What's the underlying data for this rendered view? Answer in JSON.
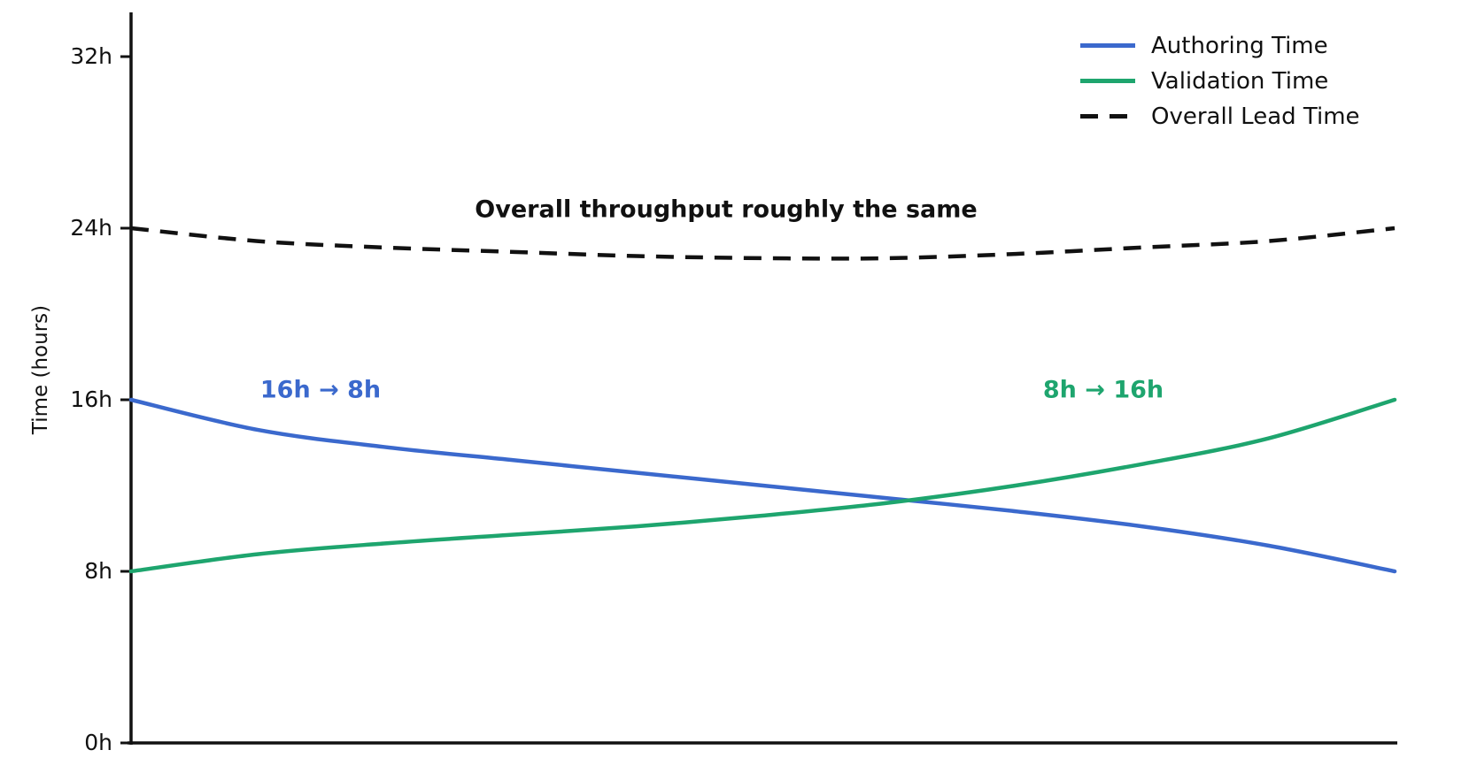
{
  "figure": {
    "background": "#ffffff",
    "axis_color": "#111111"
  },
  "y_axis": {
    "label": "Time (hours)",
    "ticks": [
      {
        "label": "0h",
        "value": 0
      },
      {
        "label": "8h",
        "value": 8
      },
      {
        "label": "16h",
        "value": 16
      },
      {
        "label": "24h",
        "value": 24
      },
      {
        "label": "32h",
        "value": 32
      }
    ]
  },
  "legend": {
    "items": [
      {
        "label": "Authoring Time",
        "color": "#3b69cd",
        "style": "solid"
      },
      {
        "label": "Validation Time",
        "color": "#1ea56e",
        "style": "solid"
      },
      {
        "label": "Overall Lead Time",
        "color": "#111111",
        "style": "dashed"
      }
    ]
  },
  "annotations": {
    "throughput": {
      "text": "Overall throughput roughly the same",
      "color": "#111111"
    },
    "authoring_change": {
      "text": "16h → 8h",
      "color": "#3b69cd"
    },
    "validation_change": {
      "text": "8h → 16h",
      "color": "#1ea56e"
    }
  },
  "chart_data": {
    "type": "line",
    "title": "",
    "xlabel": "",
    "ylabel": "Time (hours)",
    "x_axis_visible_labels": "none",
    "ylim": [
      0,
      34
    ],
    "y_tick_values": [
      0,
      8,
      16,
      24,
      32
    ],
    "y_tick_labels": [
      "0h",
      "8h",
      "16h",
      "24h",
      "32h"
    ],
    "grid": false,
    "legend_position": "upper right",
    "x": [
      0,
      0.1,
      0.2,
      0.3,
      0.4,
      0.5,
      0.6,
      0.7,
      0.8,
      0.9,
      1.0
    ],
    "series": [
      {
        "name": "Authoring Time",
        "color": "#3b69cd",
        "style": "solid",
        "values": [
          16.0,
          14.6,
          13.8,
          13.2,
          12.6,
          12.0,
          11.4,
          10.8,
          10.1,
          9.2,
          8.0
        ]
      },
      {
        "name": "Validation Time",
        "color": "#1ea56e",
        "style": "solid",
        "values": [
          8.0,
          8.8,
          9.3,
          9.7,
          10.1,
          10.6,
          11.2,
          12.0,
          13.0,
          14.2,
          16.0
        ]
      },
      {
        "name": "Overall Lead Time",
        "color": "#111111",
        "style": "dashed",
        "values": [
          24.0,
          23.4,
          23.1,
          22.9,
          22.7,
          22.6,
          22.6,
          22.8,
          23.1,
          23.4,
          24.0
        ]
      }
    ],
    "annotations": [
      {
        "text": "Overall throughput roughly the same",
        "color": "#111111",
        "bold": true
      },
      {
        "text": "16h → 8h",
        "color": "#3b69cd",
        "bold": true
      },
      {
        "text": "8h → 16h",
        "color": "#1ea56e",
        "bold": true
      }
    ]
  }
}
